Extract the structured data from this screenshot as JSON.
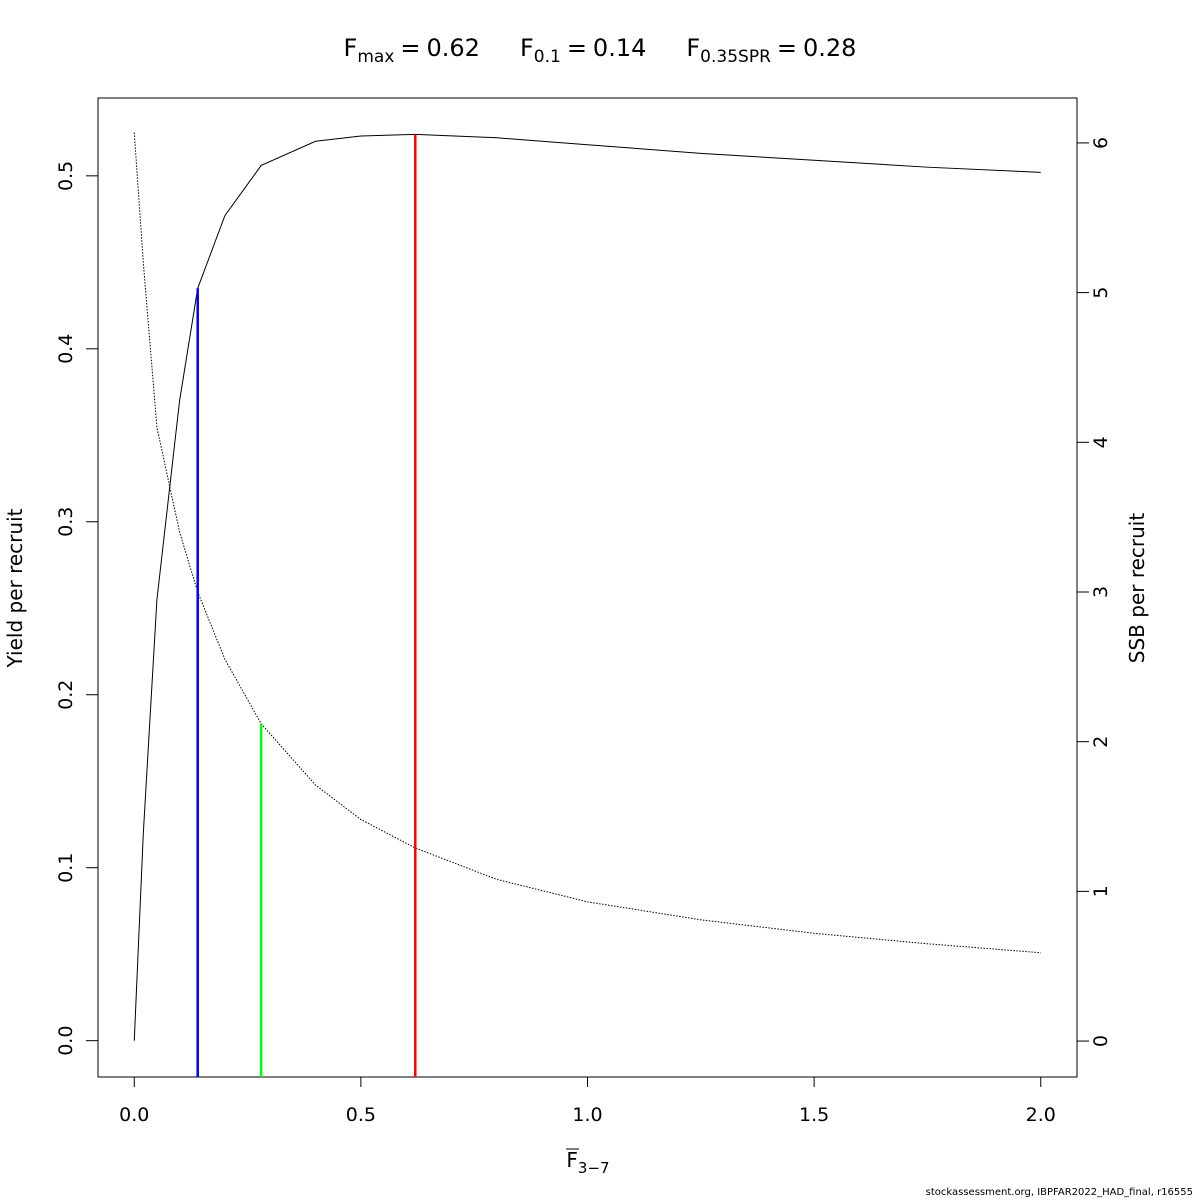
{
  "chart_data": {
    "type": "line",
    "title_parts": [
      {
        "name": "F",
        "sub": "max",
        "relation": "=",
        "value": 0.62,
        "color": "#ff0000",
        "top": 0.524,
        "top_axis": "y"
      },
      {
        "name": "F",
        "sub": "0.1",
        "relation": "=",
        "value": 0.14,
        "color": "#0000ff",
        "top": 0.435,
        "top_axis": "y"
      },
      {
        "name": "F",
        "sub": "0.35SPR",
        "relation": "=",
        "value": 0.28,
        "color": "#00ff00",
        "top": 2.12,
        "top_axis": "y2"
      }
    ],
    "x_label": {
      "name": "F",
      "sub": "3−7"
    },
    "y_label": "Yield per recruit",
    "y2_label": "SSB per recruit",
    "x": [
      0,
      0.02,
      0.05,
      0.1,
      0.14,
      0.2,
      0.28,
      0.4,
      0.5,
      0.62,
      0.8,
      1.0,
      1.25,
      1.5,
      1.75,
      2.0
    ],
    "series": [
      {
        "color": "#000000",
        "style": "solid",
        "axis": "y",
        "values": [
          0,
          0.12,
          0.255,
          0.37,
          0.435,
          0.477,
          0.506,
          0.52,
          0.523,
          0.524,
          0.522,
          0.518,
          0.513,
          0.509,
          0.505,
          0.502
        ]
      },
      {
        "color": "#000000",
        "style": "dotted",
        "axis": "y2",
        "values": [
          6.07,
          5.2,
          4.1,
          3.4,
          3.0,
          2.55,
          2.12,
          1.71,
          1.48,
          1.29,
          1.08,
          0.93,
          0.81,
          0.72,
          0.65,
          0.59
        ]
      }
    ],
    "xlim": [
      -0.08,
      2.08
    ],
    "ylim": [
      -0.021,
      0.545
    ],
    "y2lim": [
      -0.24,
      6.3
    ],
    "xticks": [
      {
        "value": 0,
        "label": "0.0"
      },
      0.5,
      {
        "value": 1,
        "label": "1.0"
      },
      1.5,
      {
        "value": 2,
        "label": "2.0"
      }
    ],
    "yticks": [
      {
        "value": 0,
        "label": "0.0"
      },
      0.1,
      0.2,
      0.3,
      0.4,
      0.5
    ],
    "y2ticks": [
      0,
      1,
      2,
      3,
      4,
      5,
      6
    ],
    "footer": "stockassessment.org, IBPFAR2022_HAD_final, r16555"
  }
}
